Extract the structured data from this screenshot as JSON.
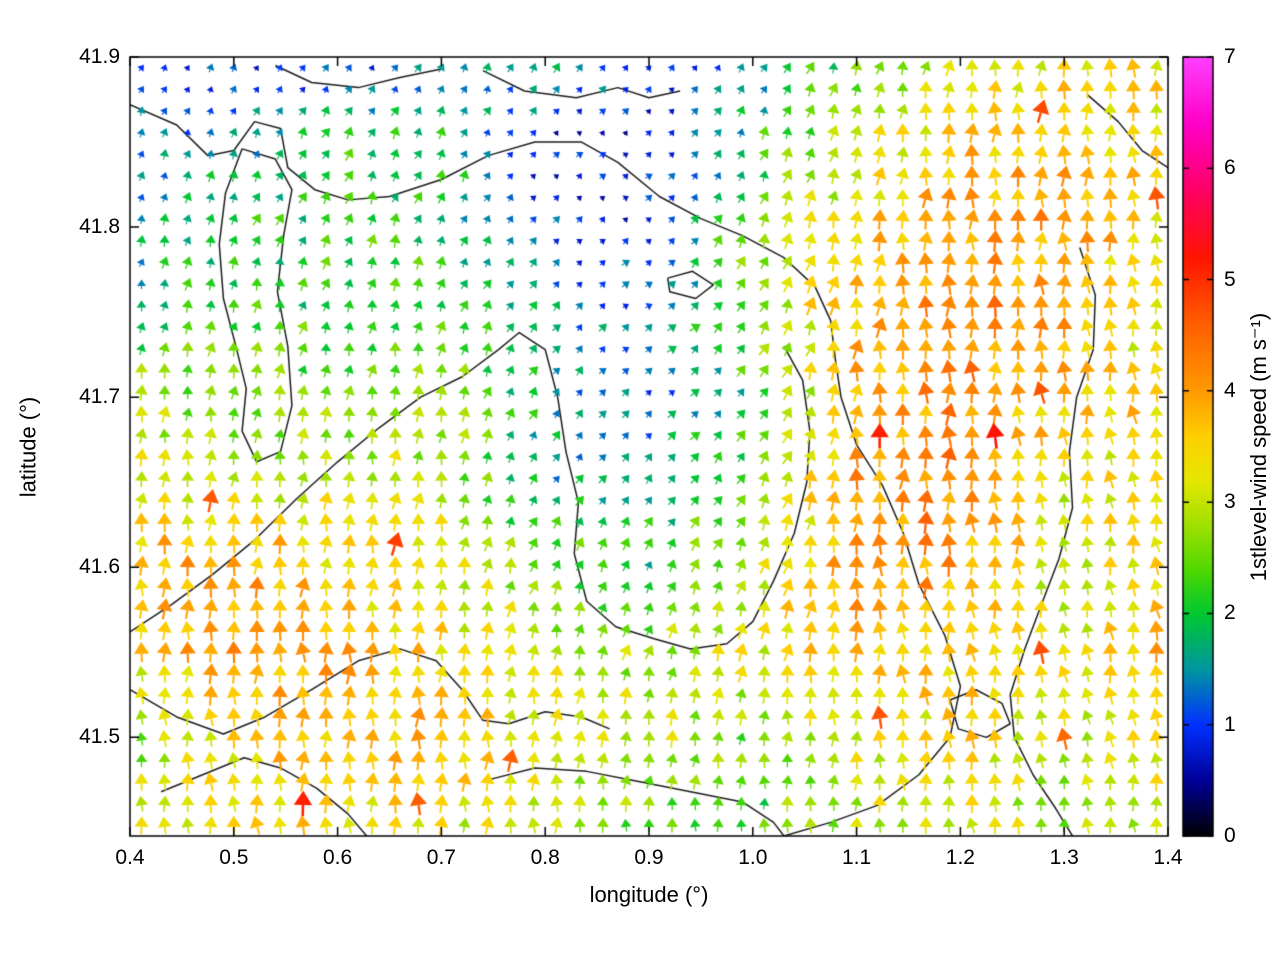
{
  "chart_data": {
    "type": "quiver",
    "title": "",
    "xlabel": "longitude (°)",
    "ylabel": "latitude (°)",
    "xlim": [
      0.4,
      1.4
    ],
    "ylim": [
      41.442,
      41.9
    ],
    "grid_on": false,
    "x_ticks": {
      "values": [
        0.4,
        0.5,
        0.6,
        0.7,
        0.8,
        0.9,
        1.0,
        1.1,
        1.2,
        1.3,
        1.4
      ],
      "labels": [
        "0.4",
        "0.5",
        "0.6",
        "0.7",
        "0.8",
        "0.9",
        "1.0",
        "1.1",
        "1.2",
        "1.3",
        "1.4"
      ]
    },
    "y_ticks": {
      "values": [
        41.5,
        41.6,
        41.7,
        41.8,
        41.9
      ],
      "labels": [
        "41.5",
        "41.6",
        "41.7",
        "41.8",
        "41.9"
      ]
    },
    "colorbar": {
      "label": "1stlevel-wind speed (m s⁻¹)",
      "min": 0,
      "max": 7,
      "tick_values": [
        0,
        1,
        2,
        3,
        4,
        5,
        6,
        7
      ],
      "tick_labels": [
        "0",
        "1",
        "2",
        "3",
        "4",
        "5",
        "6",
        "7"
      ],
      "colormap": [
        [
          0.0,
          "#000000"
        ],
        [
          0.5,
          "#000097"
        ],
        [
          1.0,
          "#0030ff"
        ],
        [
          1.5,
          "#0096a0"
        ],
        [
          2.0,
          "#00c830"
        ],
        [
          2.4,
          "#50d800"
        ],
        [
          2.8,
          "#a0e000"
        ],
        [
          3.2,
          "#e6e600"
        ],
        [
          3.6,
          "#ffcf00"
        ],
        [
          4.0,
          "#ff9a00"
        ],
        [
          4.6,
          "#ff5f00"
        ],
        [
          5.2,
          "#ff1500"
        ],
        [
          5.8,
          "#ff0064"
        ],
        [
          6.4,
          "#ff00c8"
        ],
        [
          7.0,
          "#ff40ff"
        ]
      ]
    },
    "arrow_grid": {
      "nx": 45,
      "ny": 36
    },
    "field": {
      "lon_nodes": [
        0.4,
        0.5,
        0.6,
        0.7,
        0.8,
        0.9,
        1.0,
        1.1,
        1.2,
        1.3,
        1.4
      ],
      "lat_nodes": [
        41.9,
        41.85,
        41.8,
        41.75,
        41.7,
        41.65,
        41.6,
        41.55,
        41.5,
        41.45
      ],
      "speed_ms": [
        [
          1.0,
          1.0,
          0.8,
          1.5,
          1.8,
          1.0,
          1.4,
          2.4,
          3.0,
          3.2,
          3.4
        ],
        [
          1.2,
          1.6,
          2.0,
          2.0,
          0.8,
          0.8,
          2.0,
          3.0,
          3.6,
          3.8,
          3.3
        ],
        [
          1.5,
          2.0,
          2.2,
          2.0,
          1.0,
          1.0,
          2.5,
          3.5,
          4.0,
          4.0,
          3.5
        ],
        [
          2.0,
          2.2,
          2.2,
          2.3,
          1.5,
          1.2,
          2.8,
          3.8,
          4.2,
          4.0,
          2.8
        ],
        [
          2.8,
          2.5,
          2.5,
          2.8,
          1.8,
          1.2,
          2.0,
          3.8,
          4.2,
          3.6,
          3.6
        ],
        [
          3.2,
          3.0,
          3.0,
          3.0,
          1.6,
          1.8,
          2.5,
          4.0,
          4.3,
          3.2,
          3.4
        ],
        [
          3.8,
          4.0,
          3.5,
          3.2,
          2.5,
          2.0,
          3.0,
          4.2,
          4.0,
          3.0,
          3.6
        ],
        [
          3.5,
          4.0,
          3.8,
          3.5,
          3.0,
          2.8,
          3.2,
          3.8,
          3.5,
          3.2,
          3.8
        ],
        [
          2.6,
          3.5,
          3.8,
          3.8,
          3.2,
          3.0,
          2.5,
          3.2,
          3.5,
          3.0,
          3.5
        ],
        [
          3.0,
          3.4,
          3.5,
          3.2,
          3.0,
          2.5,
          2.2,
          3.0,
          3.2,
          2.8,
          3.2
        ]
      ],
      "bearing_deg_from_north": [
        [
          30,
          30,
          35,
          25,
          20,
          40,
          30,
          15,
          10,
          5,
          0
        ],
        [
          20,
          25,
          30,
          25,
          45,
          45,
          25,
          10,
          5,
          0,
          0
        ],
        [
          15,
          20,
          20,
          20,
          45,
          50,
          20,
          10,
          0,
          0,
          -5
        ],
        [
          10,
          15,
          15,
          15,
          40,
          55,
          30,
          10,
          0,
          -5,
          -5
        ],
        [
          5,
          10,
          10,
          10,
          35,
          50,
          40,
          5,
          0,
          -5,
          -10
        ],
        [
          5,
          5,
          5,
          10,
          30,
          40,
          30,
          5,
          0,
          -5,
          -10
        ],
        [
          0,
          5,
          5,
          5,
          20,
          30,
          20,
          0,
          -5,
          -5,
          -10
        ],
        [
          0,
          0,
          0,
          5,
          10,
          15,
          10,
          0,
          -5,
          -10,
          -10
        ],
        [
          -5,
          0,
          0,
          0,
          5,
          10,
          5,
          0,
          -5,
          -10,
          -5
        ],
        [
          -5,
          -5,
          0,
          0,
          0,
          5,
          0,
          0,
          -5,
          -5,
          -5
        ]
      ]
    },
    "contours_lonlat": [
      [
        [
          0.4,
          41.872
        ],
        [
          0.445,
          41.86
        ],
        [
          0.475,
          41.842
        ],
        [
          0.5,
          41.845
        ],
        [
          0.52,
          41.862
        ],
        [
          0.545,
          41.858
        ],
        [
          0.552,
          41.835
        ],
        [
          0.578,
          41.822
        ],
        [
          0.61,
          41.816
        ],
        [
          0.65,
          41.818
        ],
        [
          0.7,
          41.828
        ],
        [
          0.745,
          41.842
        ],
        [
          0.79,
          41.85
        ],
        [
          0.835,
          41.85
        ],
        [
          0.87,
          41.838
        ],
        [
          0.91,
          41.818
        ],
        [
          0.95,
          41.805
        ],
        [
          0.99,
          41.795
        ],
        [
          1.03,
          41.782
        ],
        [
          1.06,
          41.765
        ],
        [
          1.075,
          41.745
        ],
        [
          1.08,
          41.72
        ],
        [
          1.085,
          41.7
        ],
        [
          1.1,
          41.672
        ],
        [
          1.125,
          41.648
        ],
        [
          1.145,
          41.62
        ],
        [
          1.16,
          41.59
        ],
        [
          1.185,
          41.56
        ],
        [
          1.2,
          41.53
        ],
        [
          1.19,
          41.5
        ],
        [
          1.16,
          41.478
        ],
        [
          1.12,
          41.46
        ],
        [
          1.075,
          41.45
        ],
        [
          1.03,
          41.442
        ]
      ],
      [
        [
          0.54,
          41.895
        ],
        [
          0.575,
          41.885
        ],
        [
          0.62,
          41.882
        ],
        [
          0.66,
          41.888
        ],
        [
          0.7,
          41.893
        ]
      ],
      [
        [
          0.74,
          41.892
        ],
        [
          0.78,
          41.88
        ],
        [
          0.83,
          41.876
        ],
        [
          0.87,
          41.882
        ],
        [
          0.9,
          41.876
        ],
        [
          0.93,
          41.88
        ]
      ],
      [
        [
          0.508,
          41.846
        ],
        [
          0.492,
          41.82
        ],
        [
          0.486,
          41.79
        ],
        [
          0.49,
          41.758
        ],
        [
          0.502,
          41.73
        ],
        [
          0.512,
          41.705
        ],
        [
          0.508,
          41.68
        ],
        [
          0.522,
          41.662
        ],
        [
          0.545,
          41.668
        ],
        [
          0.556,
          41.695
        ],
        [
          0.552,
          41.73
        ],
        [
          0.542,
          41.762
        ],
        [
          0.548,
          41.795
        ],
        [
          0.556,
          41.822
        ],
        [
          0.54,
          41.84
        ],
        [
          0.508,
          41.846
        ]
      ],
      [
        [
          0.4,
          41.562
        ],
        [
          0.44,
          41.578
        ],
        [
          0.48,
          41.596
        ],
        [
          0.52,
          41.616
        ],
        [
          0.56,
          41.64
        ],
        [
          0.6,
          41.662
        ],
        [
          0.64,
          41.682
        ],
        [
          0.68,
          41.7
        ],
        [
          0.72,
          41.712
        ],
        [
          0.755,
          41.728
        ],
        [
          0.775,
          41.738
        ],
        [
          0.8,
          41.728
        ],
        [
          0.812,
          41.7
        ],
        [
          0.82,
          41.668
        ],
        [
          0.832,
          41.638
        ],
        [
          0.828,
          41.608
        ],
        [
          0.84,
          41.58
        ],
        [
          0.868,
          41.565
        ],
        [
          0.905,
          41.558
        ],
        [
          0.94,
          41.552
        ],
        [
          0.975,
          41.555
        ],
        [
          1.0,
          41.568
        ],
        [
          1.02,
          41.592
        ],
        [
          1.04,
          41.62
        ],
        [
          1.052,
          41.65
        ],
        [
          1.055,
          41.68
        ],
        [
          1.048,
          41.71
        ],
        [
          1.03,
          41.73
        ]
      ],
      [
        [
          0.4,
          41.528
        ],
        [
          0.445,
          41.512
        ],
        [
          0.49,
          41.502
        ],
        [
          0.53,
          41.512
        ],
        [
          0.575,
          41.528
        ],
        [
          0.62,
          41.545
        ],
        [
          0.66,
          41.552
        ],
        [
          0.695,
          41.545
        ],
        [
          0.72,
          41.528
        ],
        [
          0.74,
          41.51
        ],
        [
          0.765,
          41.508
        ],
        [
          0.8,
          41.515
        ],
        [
          0.835,
          41.512
        ],
        [
          0.862,
          41.505
        ]
      ],
      [
        [
          0.43,
          41.468
        ],
        [
          0.47,
          41.478
        ],
        [
          0.51,
          41.488
        ],
        [
          0.545,
          41.482
        ],
        [
          0.58,
          41.47
        ],
        [
          0.61,
          41.455
        ],
        [
          0.628,
          41.442
        ]
      ],
      [
        [
          0.745,
          41.475
        ],
        [
          0.79,
          41.482
        ],
        [
          0.84,
          41.48
        ],
        [
          0.89,
          41.474
        ],
        [
          0.94,
          41.468
        ],
        [
          0.99,
          41.462
        ],
        [
          1.02,
          41.45
        ],
        [
          1.03,
          41.442
        ]
      ],
      [
        [
          1.315,
          41.788
        ],
        [
          1.33,
          41.76
        ],
        [
          1.328,
          41.728
        ],
        [
          1.312,
          41.7
        ],
        [
          1.305,
          41.668
        ],
        [
          1.308,
          41.635
        ],
        [
          1.295,
          41.605
        ],
        [
          1.278,
          41.578
        ],
        [
          1.262,
          41.552
        ],
        [
          1.248,
          41.525
        ],
        [
          1.252,
          41.5
        ],
        [
          1.27,
          41.478
        ],
        [
          1.292,
          41.458
        ],
        [
          1.308,
          41.442
        ]
      ],
      [
        [
          1.19,
          41.522
        ],
        [
          1.215,
          41.528
        ],
        [
          1.24,
          41.52
        ],
        [
          1.248,
          41.508
        ],
        [
          1.225,
          41.5
        ],
        [
          1.198,
          41.505
        ],
        [
          1.19,
          41.522
        ]
      ],
      [
        [
          0.918,
          41.77
        ],
        [
          0.942,
          41.774
        ],
        [
          0.962,
          41.766
        ],
        [
          0.945,
          41.758
        ],
        [
          0.92,
          41.762
        ],
        [
          0.918,
          41.77
        ]
      ],
      [
        [
          1.322,
          41.878
        ],
        [
          1.352,
          41.862
        ],
        [
          1.375,
          41.845
        ],
        [
          1.4,
          41.835
        ]
      ]
    ],
    "contour_color": "#1c1c1c",
    "background_color": "#ffffff"
  }
}
